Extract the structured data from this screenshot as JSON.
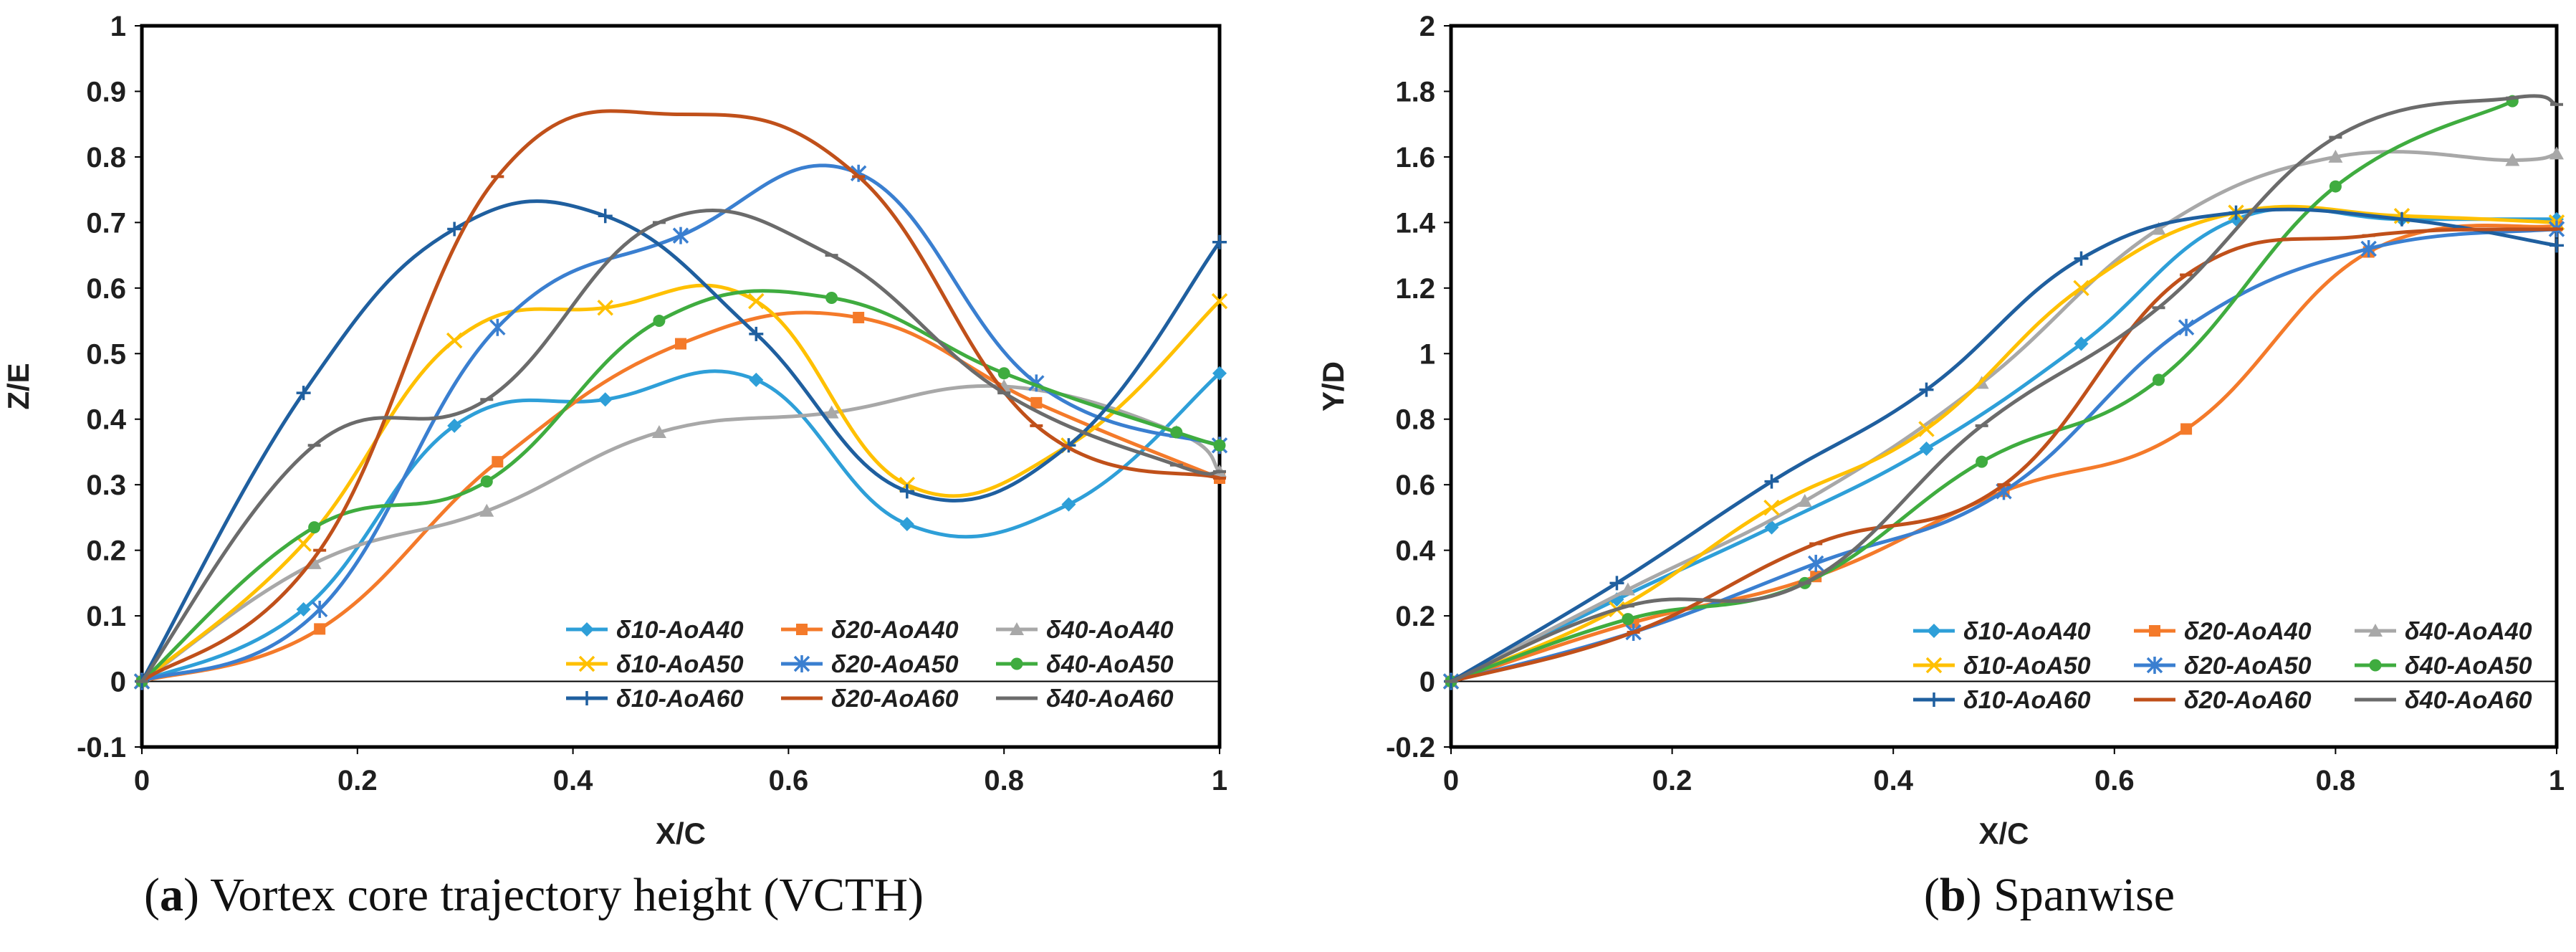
{
  "chart_data": [
    {
      "type": "line",
      "caption_label": "a",
      "caption_text": "Vortex core trajectory height (VCTH)",
      "xlabel": "X/C",
      "ylabel": "Z/E",
      "xlim": [
        0,
        1
      ],
      "ylim": [
        -0.1,
        1
      ],
      "xticks": [
        "0",
        "0.2",
        "0.4",
        "0.6",
        "0.8",
        "1"
      ],
      "yticks": [
        "-0.1",
        "0",
        "0.1",
        "0.2",
        "0.3",
        "0.4",
        "0.5",
        "0.6",
        "0.7",
        "0.8",
        "0.9",
        "1"
      ],
      "series": [
        {
          "name": "δ10-AoA40",
          "color": "#2e9fd8",
          "marker": "diamond",
          "points": [
            [
              0,
              0
            ],
            [
              0.15,
              0.11
            ],
            [
              0.29,
              0.39
            ],
            [
              0.43,
              0.43
            ],
            [
              0.57,
              0.46
            ],
            [
              0.71,
              0.24
            ],
            [
              0.86,
              0.27
            ],
            [
              1,
              0.47
            ]
          ]
        },
        {
          "name": "δ20-AoA40",
          "color": "#f47a2a",
          "marker": "square",
          "points": [
            [
              0,
              0
            ],
            [
              0.165,
              0.08
            ],
            [
              0.33,
              0.335
            ],
            [
              0.5,
              0.515
            ],
            [
              0.665,
              0.555
            ],
            [
              0.83,
              0.425
            ],
            [
              1,
              0.31
            ]
          ]
        },
        {
          "name": "δ40-AoA40",
          "color": "#a8a8a8",
          "marker": "triangle",
          "points": [
            [
              0,
              0
            ],
            [
              0.16,
              0.18
            ],
            [
              0.32,
              0.26
            ],
            [
              0.48,
              0.38
            ],
            [
              0.64,
              0.41
            ],
            [
              0.8,
              0.45
            ],
            [
              0.96,
              0.38
            ],
            [
              1,
              0.32
            ]
          ]
        },
        {
          "name": "δ10-AoA50",
          "color": "#ffc000",
          "marker": "x",
          "points": [
            [
              0,
              0
            ],
            [
              0.15,
              0.21
            ],
            [
              0.29,
              0.52
            ],
            [
              0.43,
              0.57
            ],
            [
              0.57,
              0.58
            ],
            [
              0.71,
              0.3
            ],
            [
              0.86,
              0.36
            ],
            [
              1,
              0.58
            ]
          ]
        },
        {
          "name": "δ20-AoA50",
          "color": "#3a7fd0",
          "marker": "star",
          "points": [
            [
              0,
              0
            ],
            [
              0.165,
              0.11
            ],
            [
              0.33,
              0.54
            ],
            [
              0.5,
              0.68
            ],
            [
              0.665,
              0.775
            ],
            [
              0.83,
              0.455
            ],
            [
              1,
              0.36
            ]
          ]
        },
        {
          "name": "δ40-AoA50",
          "color": "#3fac3f",
          "marker": "circle",
          "points": [
            [
              0,
              0
            ],
            [
              0.16,
              0.235
            ],
            [
              0.32,
              0.305
            ],
            [
              0.48,
              0.55
            ],
            [
              0.64,
              0.585
            ],
            [
              0.8,
              0.47
            ],
            [
              0.96,
              0.38
            ],
            [
              1,
              0.36
            ]
          ]
        },
        {
          "name": "δ10-AoA60",
          "color": "#1f5f9f",
          "marker": "plus",
          "points": [
            [
              0,
              0
            ],
            [
              0.15,
              0.44
            ],
            [
              0.29,
              0.69
            ],
            [
              0.43,
              0.71
            ],
            [
              0.57,
              0.53
            ],
            [
              0.71,
              0.29
            ],
            [
              0.86,
              0.36
            ],
            [
              1,
              0.67
            ]
          ]
        },
        {
          "name": "δ20-AoA60",
          "color": "#c0501a",
          "marker": "dash",
          "points": [
            [
              0,
              0
            ],
            [
              0.165,
              0.2
            ],
            [
              0.33,
              0.77
            ],
            [
              0.5,
              0.865
            ],
            [
              0.665,
              0.77
            ],
            [
              0.83,
              0.39
            ],
            [
              1,
              0.31
            ]
          ]
        },
        {
          "name": "δ40-AoA60",
          "color": "#6b6b6b",
          "marker": "dash",
          "points": [
            [
              0,
              0
            ],
            [
              0.16,
              0.36
            ],
            [
              0.32,
              0.43
            ],
            [
              0.48,
              0.7
            ],
            [
              0.64,
              0.65
            ],
            [
              0.8,
              0.44
            ],
            [
              0.96,
              0.33
            ],
            [
              1,
              0.32
            ]
          ]
        }
      ]
    },
    {
      "type": "line",
      "caption_label": "b",
      "caption_text": "Spanwise",
      "xlabel": "X/C",
      "ylabel": "Y/D",
      "xlim": [
        0,
        1
      ],
      "ylim": [
        -0.2,
        2
      ],
      "xticks": [
        "0",
        "0.2",
        "0.4",
        "0.6",
        "0.8",
        "1"
      ],
      "yticks": [
        "-0.2",
        "0",
        "0.2",
        "0.4",
        "0.6",
        "0.8",
        "1",
        "1.2",
        "1.4",
        "1.6",
        "1.8",
        "2"
      ],
      "series": [
        {
          "name": "δ10-AoA40",
          "color": "#2e9fd8",
          "marker": "diamond",
          "points": [
            [
              0,
              0
            ],
            [
              0.15,
              0.25
            ],
            [
              0.29,
              0.47
            ],
            [
              0.43,
              0.71
            ],
            [
              0.57,
              1.03
            ],
            [
              0.71,
              1.41
            ],
            [
              0.86,
              1.41
            ],
            [
              1,
              1.41
            ]
          ]
        },
        {
          "name": "δ20-AoA40",
          "color": "#f47a2a",
          "marker": "square",
          "points": [
            [
              0,
              0
            ],
            [
              0.165,
              0.18
            ],
            [
              0.33,
              0.32
            ],
            [
              0.5,
              0.58
            ],
            [
              0.665,
              0.77
            ],
            [
              0.83,
              1.31
            ],
            [
              1,
              1.39
            ]
          ]
        },
        {
          "name": "δ40-AoA40",
          "color": "#a8a8a8",
          "marker": "triangle",
          "points": [
            [
              0,
              0
            ],
            [
              0.16,
              0.28
            ],
            [
              0.32,
              0.55
            ],
            [
              0.48,
              0.91
            ],
            [
              0.64,
              1.38
            ],
            [
              0.8,
              1.6
            ],
            [
              0.96,
              1.59
            ],
            [
              1,
              1.61
            ]
          ]
        },
        {
          "name": "δ10-AoA50",
          "color": "#ffc000",
          "marker": "x",
          "points": [
            [
              0,
              0
            ],
            [
              0.15,
              0.22
            ],
            [
              0.29,
              0.53
            ],
            [
              0.43,
              0.77
            ],
            [
              0.57,
              1.2
            ],
            [
              0.71,
              1.43
            ],
            [
              0.86,
              1.42
            ],
            [
              1,
              1.4
            ]
          ]
        },
        {
          "name": "δ20-AoA50",
          "color": "#3a7fd0",
          "marker": "star",
          "points": [
            [
              0,
              0
            ],
            [
              0.165,
              0.15
            ],
            [
              0.33,
              0.36
            ],
            [
              0.5,
              0.58
            ],
            [
              0.665,
              1.08
            ],
            [
              0.83,
              1.32
            ],
            [
              1,
              1.38
            ]
          ]
        },
        {
          "name": "δ40-AoA50",
          "color": "#3fac3f",
          "marker": "circle",
          "points": [
            [
              0,
              0
            ],
            [
              0.16,
              0.19
            ],
            [
              0.32,
              0.3
            ],
            [
              0.48,
              0.67
            ],
            [
              0.64,
              0.92
            ],
            [
              0.8,
              1.51
            ],
            [
              0.96,
              1.77
            ]
          ]
        },
        {
          "name": "δ10-AoA60",
          "color": "#1f5f9f",
          "marker": "plus",
          "points": [
            [
              0,
              0
            ],
            [
              0.15,
              0.3
            ],
            [
              0.29,
              0.61
            ],
            [
              0.43,
              0.89
            ],
            [
              0.57,
              1.29
            ],
            [
              0.71,
              1.43
            ],
            [
              0.86,
              1.41
            ],
            [
              1,
              1.33
            ]
          ]
        },
        {
          "name": "δ20-AoA60",
          "color": "#c0501a",
          "marker": "dash",
          "points": [
            [
              0,
              0
            ],
            [
              0.165,
              0.15
            ],
            [
              0.33,
              0.42
            ],
            [
              0.5,
              0.6
            ],
            [
              0.665,
              1.24
            ],
            [
              0.83,
              1.36
            ],
            [
              1,
              1.38
            ]
          ]
        },
        {
          "name": "δ40-AoA60",
          "color": "#6b6b6b",
          "marker": "dash",
          "points": [
            [
              0,
              0
            ],
            [
              0.16,
              0.23
            ],
            [
              0.32,
              0.3
            ],
            [
              0.48,
              0.78
            ],
            [
              0.64,
              1.14
            ],
            [
              0.8,
              1.66
            ],
            [
              0.96,
              1.78
            ],
            [
              1,
              1.76
            ]
          ]
        }
      ]
    }
  ]
}
